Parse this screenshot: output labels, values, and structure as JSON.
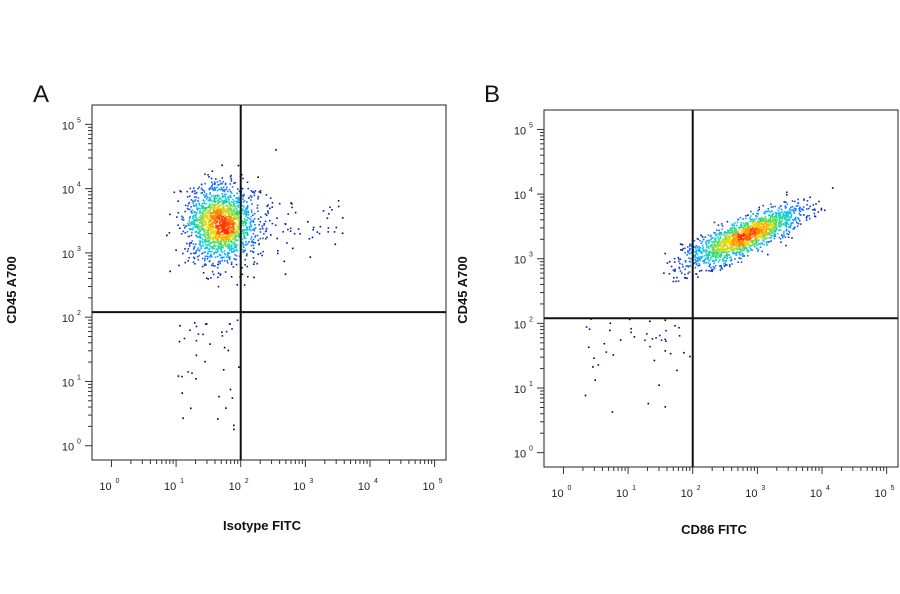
{
  "chart_data": [
    {
      "type": "scatter",
      "panel": "A",
      "xlabel": "Isotype FITC",
      "ylabel": "CD45 A700",
      "xscale": "log",
      "yscale": "log",
      "xlim": [
        0.5,
        150000
      ],
      "ylim": [
        0.6,
        200000
      ],
      "xtick_base": "10",
      "xtick_exponents": [
        "0",
        "1",
        "2",
        "3",
        "4",
        "5"
      ],
      "ytick_base": "10",
      "ytick_exponents": [
        "0",
        "1",
        "2",
        "3",
        "4",
        "5"
      ],
      "quadrant_gate": {
        "x": 100,
        "y": 120
      },
      "population": {
        "main_cluster": {
          "center": [
            50,
            2800
          ],
          "spread_log10": [
            0.28,
            0.3
          ],
          "n": 1700
        },
        "low_tail": {
          "x_range": [
            10,
            100
          ],
          "y_range": [
            1,
            120
          ],
          "n": 40
        },
        "outliers": [
          [
            350,
            40000
          ],
          [
            250,
            8000
          ],
          [
            600,
            6000
          ]
        ]
      },
      "colormap": [
        "#00008b",
        "#1e5fff",
        "#00c8ff",
        "#30e06a",
        "#ffd800",
        "#ff3000"
      ]
    },
    {
      "type": "scatter",
      "panel": "B",
      "xlabel": "CD86 FITC",
      "ylabel": "CD45 A700",
      "xscale": "log",
      "yscale": "log",
      "xlim": [
        0.5,
        150000
      ],
      "ylim": [
        0.6,
        200000
      ],
      "xtick_base": "10",
      "xtick_exponents": [
        "0",
        "1",
        "2",
        "3",
        "4",
        "5"
      ],
      "ytick_base": "10",
      "ytick_exponents": [
        "0",
        "1",
        "2",
        "3",
        "4",
        "5"
      ],
      "quadrant_gate": {
        "x": 100,
        "y": 120
      },
      "population": {
        "main_cluster": {
          "center": [
            700,
            2300
          ],
          "trend": "diagonal",
          "n": 1500
        },
        "low_tail": {
          "x_range": [
            2,
            100
          ],
          "y_range": [
            2,
            120
          ],
          "n": 45
        }
      },
      "colormap": [
        "#00008b",
        "#1e5fff",
        "#00c8ff",
        "#30e06a",
        "#ffd800",
        "#ff3000"
      ]
    }
  ]
}
